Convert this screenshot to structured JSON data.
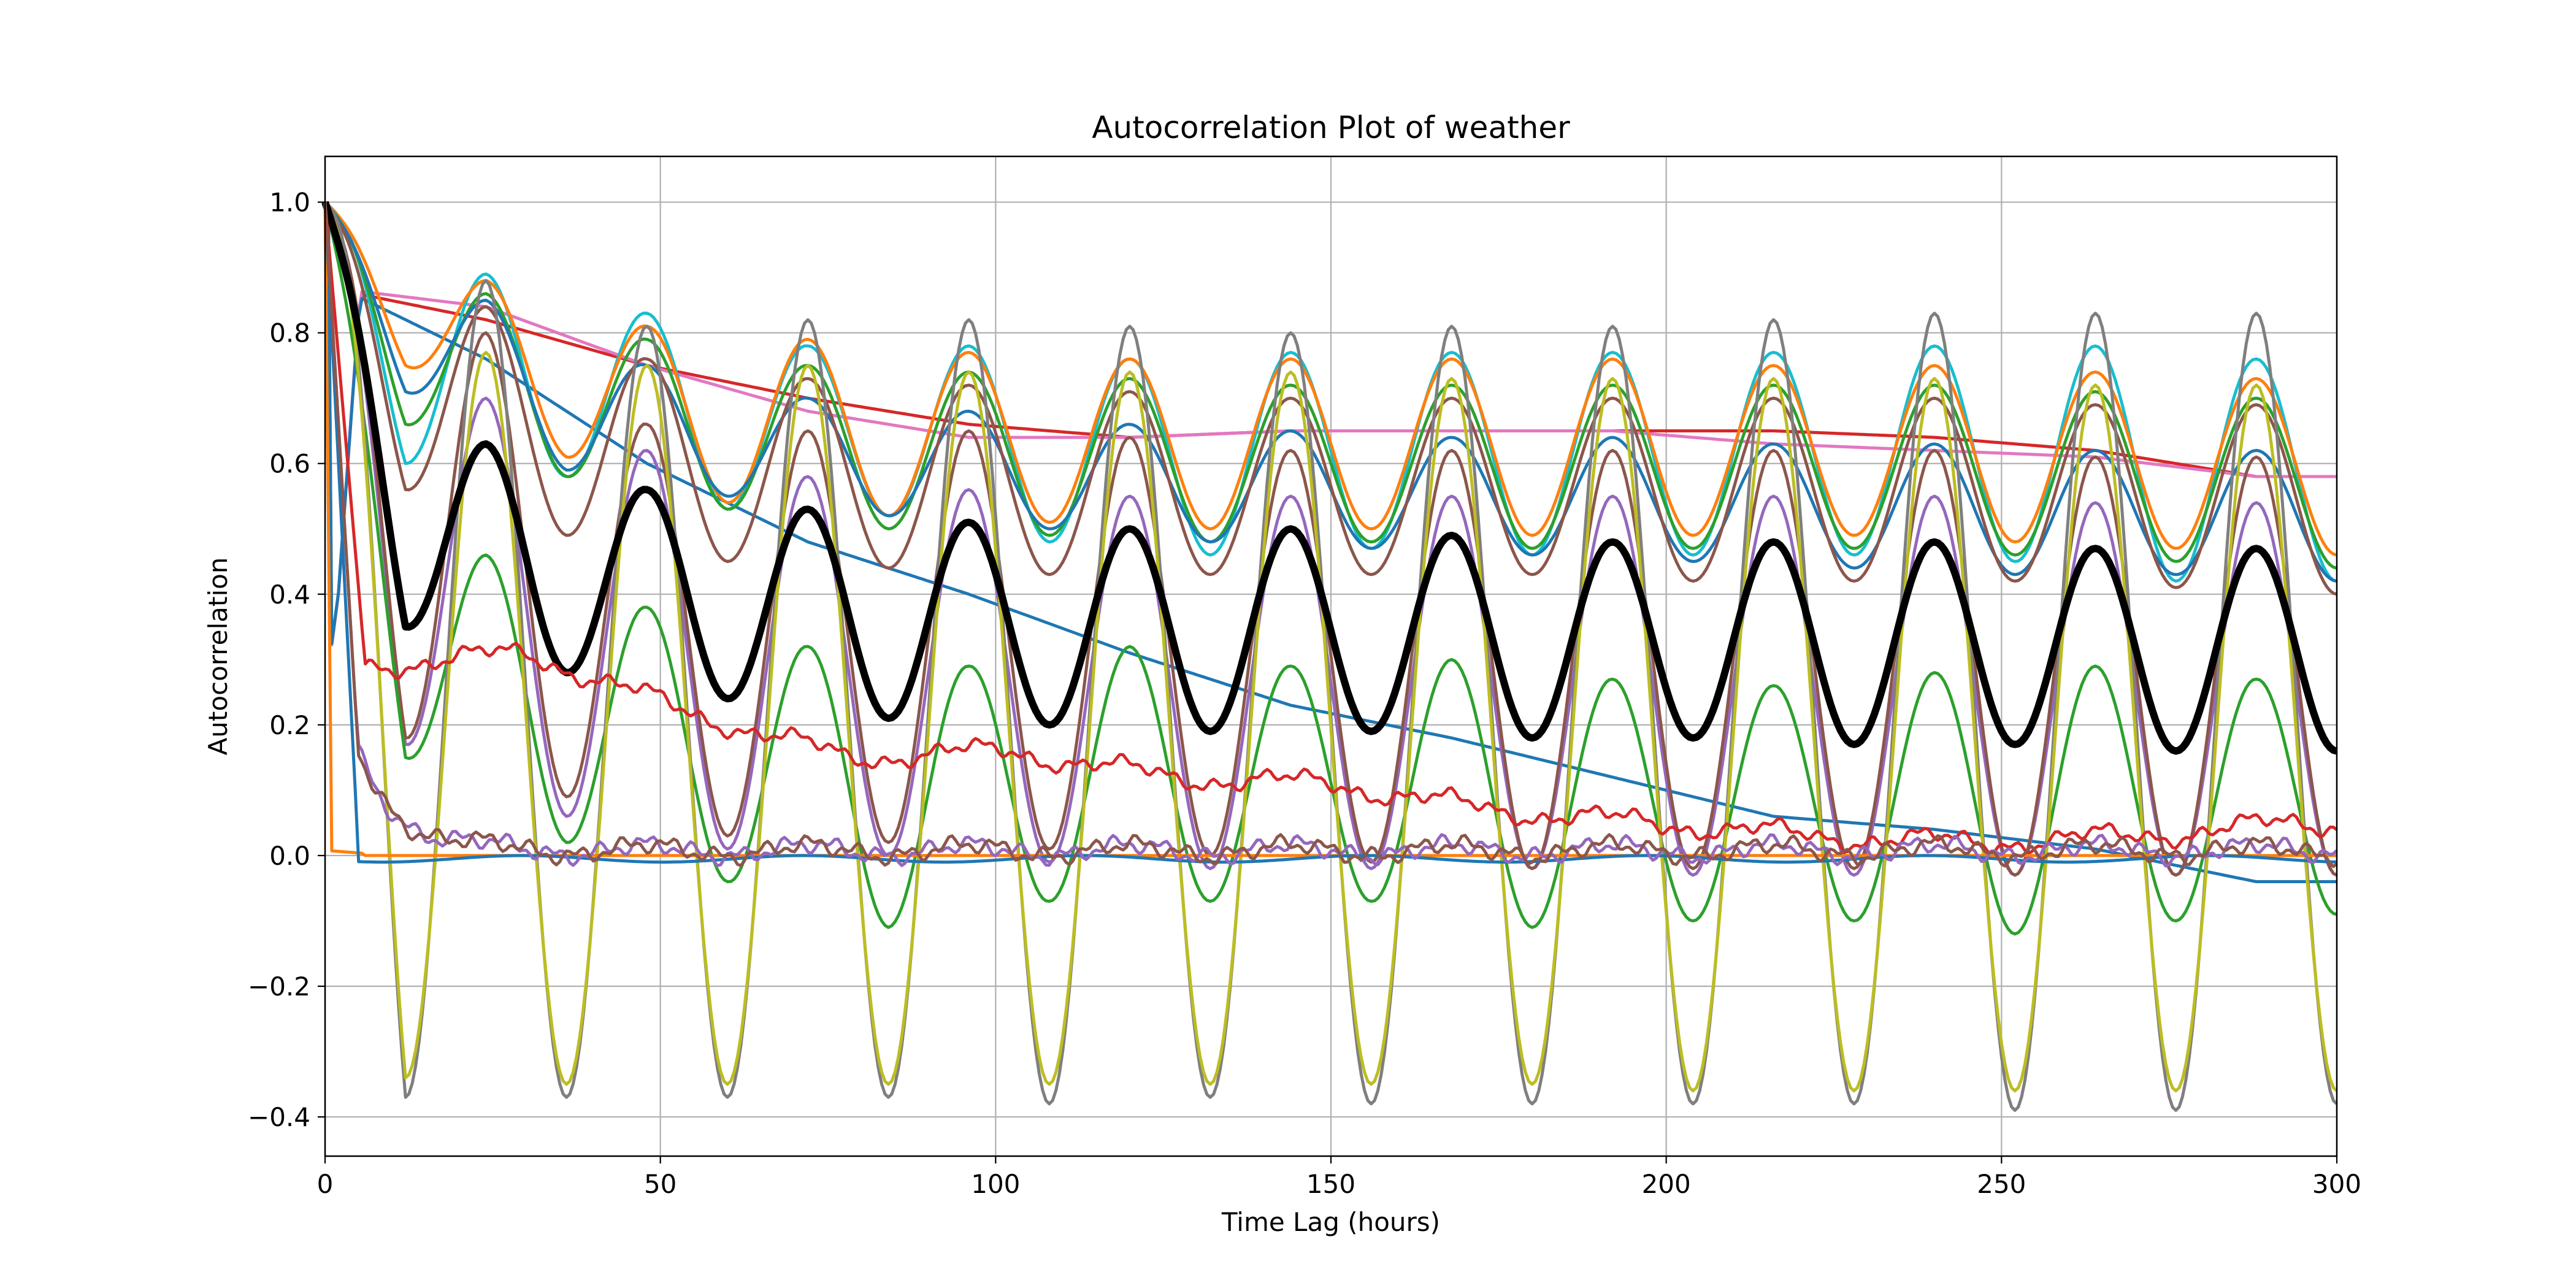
{
  "chart_data": {
    "type": "line",
    "title": "Autocorrelation Plot of weather",
    "xlabel": "Time Lag (hours)",
    "ylabel": "Autocorrelation",
    "xlim": [
      0,
      300
    ],
    "ylim": [
      -0.46,
      1.07
    ],
    "grid": true,
    "x_ticks": [
      0,
      50,
      100,
      150,
      200,
      250,
      300
    ],
    "x_tick_labels": [
      "0",
      "50",
      "100",
      "150",
      "200",
      "250",
      "300"
    ],
    "y_ticks": [
      -0.4,
      -0.2,
      0.0,
      0.2,
      0.4,
      0.6,
      0.8,
      1.0
    ],
    "y_tick_labels": [
      "−0.4",
      "−0.2",
      "0.0",
      "0.2",
      "0.4",
      "0.6",
      "0.8",
      "1.0"
    ],
    "period_hours": 24,
    "series": [
      {
        "color": "#d62728",
        "kind": "trend",
        "peaks": [
          0.87,
          0.82,
          0.75,
          0.7,
          0.66,
          0.64,
          0.65,
          0.65,
          0.65,
          0.65,
          0.64,
          0.62,
          0.58
        ]
      },
      {
        "color": "#e377c2",
        "kind": "trend",
        "peaks": [
          0.87,
          0.84,
          0.75,
          0.68,
          0.64,
          0.64,
          0.65,
          0.65,
          0.65,
          0.63,
          0.62,
          0.61,
          0.58
        ]
      },
      {
        "color": "#1f77b4",
        "kind": "trend",
        "peaks": [
          0.88,
          0.76,
          0.6,
          0.48,
          0.4,
          0.31,
          0.23,
          0.18,
          0.12,
          0.06,
          0.04,
          0.01,
          -0.04
        ]
      },
      {
        "color": "#17becf",
        "kind": "oscillating",
        "peaks": [
          0.89,
          0.83,
          0.78,
          0.78,
          0.76,
          0.77,
          0.77,
          0.77,
          0.77,
          0.78,
          0.78,
          0.76,
          0.75
        ],
        "troughs": [
          0.6,
          0.58,
          0.53,
          0.52,
          0.48,
          0.46,
          0.47,
          0.46,
          0.46,
          0.46,
          0.45,
          0.42,
          0.42
        ]
      },
      {
        "color": "#ff7f0e",
        "kind": "oscillating",
        "peaks": [
          0.88,
          0.81,
          0.79,
          0.77,
          0.76,
          0.76,
          0.76,
          0.76,
          0.75,
          0.75,
          0.74,
          0.73,
          0.72
        ],
        "troughs": [
          0.75,
          0.61,
          0.54,
          0.52,
          0.51,
          0.5,
          0.5,
          0.49,
          0.49,
          0.49,
          0.48,
          0.47,
          0.46
        ]
      },
      {
        "color": "#2ca02c",
        "kind": "oscillating",
        "peaks": [
          0.86,
          0.79,
          0.75,
          0.74,
          0.73,
          0.72,
          0.72,
          0.72,
          0.72,
          0.72,
          0.71,
          0.7,
          0.7
        ],
        "troughs": [
          0.66,
          0.58,
          0.53,
          0.5,
          0.49,
          0.48,
          0.48,
          0.47,
          0.47,
          0.47,
          0.46,
          0.45,
          0.44
        ]
      },
      {
        "color": "#1f77b4",
        "kind": "oscillating",
        "peaks": [
          0.85,
          0.75,
          0.7,
          0.68,
          0.66,
          0.65,
          0.64,
          0.64,
          0.63,
          0.63,
          0.62,
          0.62,
          0.62
        ],
        "troughs": [
          0.71,
          0.59,
          0.55,
          0.52,
          0.5,
          0.48,
          0.47,
          0.46,
          0.45,
          0.44,
          0.43,
          0.43,
          0.42
        ]
      },
      {
        "color": "#8c564b",
        "kind": "oscillating",
        "peaks": [
          0.84,
          0.76,
          0.73,
          0.72,
          0.71,
          0.7,
          0.7,
          0.7,
          0.7,
          0.7,
          0.69,
          0.69,
          0.68
        ],
        "troughs": [
          0.56,
          0.49,
          0.45,
          0.44,
          0.43,
          0.43,
          0.43,
          0.43,
          0.42,
          0.42,
          0.42,
          0.41,
          0.4
        ]
      },
      {
        "color": "#9467bd",
        "kind": "oscillating",
        "peaks": [
          0.7,
          0.62,
          0.58,
          0.56,
          0.55,
          0.55,
          0.55,
          0.55,
          0.55,
          0.55,
          0.54,
          0.54,
          0.54
        ],
        "troughs": [
          0.17,
          0.06,
          0.01,
          0.0,
          -0.01,
          -0.02,
          -0.02,
          -0.02,
          -0.03,
          -0.03,
          -0.03,
          -0.03,
          -0.03
        ]
      },
      {
        "color": "#8c564b",
        "kind": "oscillating",
        "peaks": [
          0.8,
          0.66,
          0.65,
          0.65,
          0.64,
          0.62,
          0.62,
          0.62,
          0.62,
          0.62,
          0.61,
          0.61,
          0.61
        ],
        "troughs": [
          0.18,
          0.09,
          0.03,
          0.02,
          0.01,
          0.0,
          -0.01,
          -0.02,
          -0.02,
          -0.02,
          -0.03,
          -0.03,
          -0.03
        ]
      },
      {
        "color": "#2ca02c",
        "kind": "oscillating",
        "peaks": [
          0.46,
          0.38,
          0.32,
          0.29,
          0.32,
          0.29,
          0.3,
          0.27,
          0.26,
          0.28,
          0.29,
          0.27,
          0.29
        ],
        "troughs": [
          0.15,
          0.02,
          -0.04,
          -0.11,
          -0.07,
          -0.07,
          -0.07,
          -0.11,
          -0.1,
          -0.1,
          -0.12,
          -0.1,
          -0.09
        ]
      },
      {
        "color": "#7f7f7f",
        "kind": "oscillating",
        "peaks": [
          0.88,
          0.81,
          0.82,
          0.82,
          0.81,
          0.8,
          0.81,
          0.81,
          0.82,
          0.83,
          0.83,
          0.83,
          0.82
        ],
        "troughs": [
          -0.37,
          -0.37,
          -0.37,
          -0.37,
          -0.38,
          -0.37,
          -0.38,
          -0.38,
          -0.38,
          -0.38,
          -0.39,
          -0.39,
          -0.38
        ]
      },
      {
        "color": "#bcbd22",
        "kind": "oscillating",
        "peaks": [
          0.77,
          0.75,
          0.75,
          0.74,
          0.74,
          0.74,
          0.73,
          0.73,
          0.73,
          0.73,
          0.72,
          0.72,
          0.72
        ],
        "troughs": [
          -0.34,
          -0.35,
          -0.35,
          -0.35,
          -0.35,
          -0.35,
          -0.35,
          -0.35,
          -0.36,
          -0.36,
          -0.36,
          -0.36,
          -0.36
        ]
      },
      {
        "color": "#000000",
        "kind": "oscillating",
        "bold": true,
        "peaks": [
          0.63,
          0.56,
          0.53,
          0.51,
          0.5,
          0.5,
          0.49,
          0.48,
          0.48,
          0.48,
          0.47,
          0.47,
          0.46
        ],
        "troughs": [
          0.35,
          0.28,
          0.24,
          0.21,
          0.2,
          0.19,
          0.19,
          0.18,
          0.18,
          0.17,
          0.17,
          0.16,
          0.16
        ]
      },
      {
        "color": "#d62728",
        "kind": "noisy",
        "level": [
          0.29,
          0.31,
          0.22,
          0.15,
          0.16,
          0.12,
          0.11,
          0.07,
          0.05,
          0.03,
          0.02,
          0.03,
          0.05,
          0.04
        ]
      },
      {
        "color": "#ff7f0e",
        "kind": "drop"
      },
      {
        "color": "#1f77b4",
        "kind": "flat"
      },
      {
        "color": "#9467bd",
        "kind": "noisy-small"
      },
      {
        "color": "#8c564b",
        "kind": "noisy-small"
      }
    ]
  }
}
